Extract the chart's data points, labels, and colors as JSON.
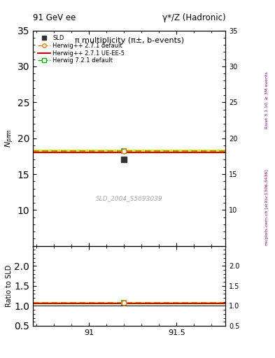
{
  "title_top": "91 GeV ee",
  "title_right": "γ*/Z (Hadronic)",
  "plot_title": "π multiplicity (π±, b-events)",
  "ylabel_main": "N_{pπm}",
  "ylabel_ratio": "Ratio to SLD",
  "watermark": "SLD_2004_S5693039",
  "right_label_top": "Rivet 3.1.10, ≥ 3M events",
  "right_label_bot": "mcplots.cern.ch [arXiv:1306.3436]",
  "xmin": 90.68,
  "xmax": 91.78,
  "ymin_main": 5,
  "ymax_main": 35,
  "ymin_ratio": 0.5,
  "ymax_ratio": 2.5,
  "yticks_main": [
    10,
    15,
    20,
    25,
    30,
    35
  ],
  "yticks_ratio": [
    0.5,
    1.0,
    1.5,
    2.0
  ],
  "xticks": [
    91.0,
    91.5
  ],
  "data_x": 91.2,
  "data_y": 17.0,
  "line_y_herwig_default": 18.2,
  "line_y_herwig_ueee5": 18.05,
  "line_y_herwig721": 18.25,
  "band_upper": 18.45,
  "band_lower": 18.05,
  "ratio_herwig_default": 1.07,
  "ratio_herwig_ueee5": 1.062,
  "ratio_herwig721": 1.076,
  "ratio_band_upper": 1.09,
  "ratio_band_lower": 1.063,
  "marker_x": 91.2,
  "color_sld": "#333333",
  "color_herwig_default": "#E08020",
  "color_herwig_ueee5": "#DD0000",
  "color_herwig721": "#00AA00",
  "color_herwig721_band": "#BBEE00",
  "bg_color": "#ffffff",
  "legend_labels": [
    "SLD",
    "Herwig++ 2.7.1 default",
    "Herwig++ 2.7.1 UE-EE-5",
    "Herwig 7.2.1 default"
  ]
}
